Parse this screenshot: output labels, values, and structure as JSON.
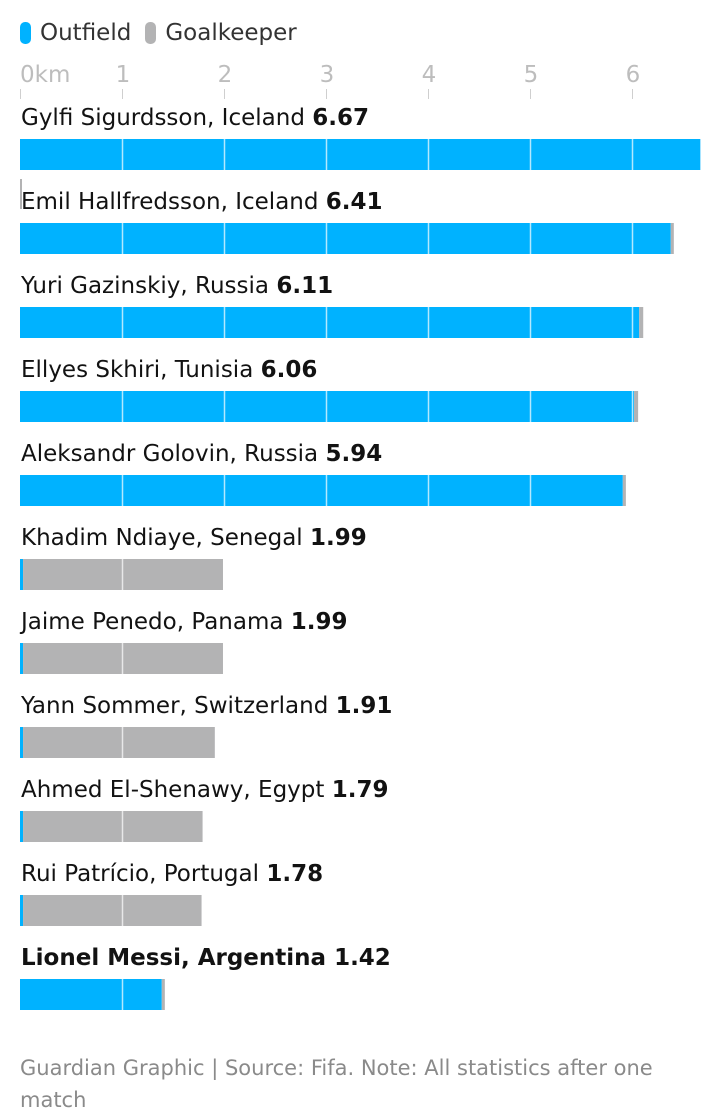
{
  "legend": [
    {
      "label": "Outfield",
      "color": "#00b2ff"
    },
    {
      "label": "Goalkeeper",
      "color": "#b3b3b4"
    }
  ],
  "source": "Guardian Graphic | Source: Fifa. Note: All statistics after one match",
  "colors": {
    "outfield": "#00b2ff",
    "goalkeeper": "#b3b3b4",
    "tick": "#bdbdbd",
    "text": "#121212"
  },
  "chart_data": {
    "type": "bar",
    "orientation": "horizontal",
    "stacked": true,
    "axis_unit": "km",
    "ticks": [
      0,
      1,
      2,
      3,
      4,
      5,
      6
    ],
    "tick_labels": [
      "0km",
      "1",
      "2",
      "3",
      "4",
      "5",
      "6"
    ],
    "xlim": [
      0,
      6.67
    ],
    "grid": true,
    "legend_position": "top-left",
    "categories": [
      "Gylfi Sigurdsson, Iceland",
      "Emil Hallfredsson, Iceland",
      "Yuri Gazinskiy, Russia",
      "Ellyes Skhiri, Tunisia",
      "Aleksandr Golovin, Russia",
      "Khadim Ndiaye, Senegal",
      "Jaime Penedo, Panama",
      "Yann Sommer, Switzerland",
      "Ahmed El-Shenawy, Egypt",
      "Rui Patrício, Portugal",
      "Lionel Messi, Argentina"
    ],
    "total_labels": [
      "6.67",
      "6.41",
      "6.11",
      "6.06",
      "5.94",
      "1.99",
      "1.99",
      "1.91",
      "1.79",
      "1.78",
      "1.42"
    ],
    "highlighted": [
      false,
      false,
      false,
      false,
      false,
      false,
      false,
      false,
      false,
      false,
      true
    ],
    "series": [
      {
        "name": "Outfield",
        "color": "#00b2ff",
        "values": [
          6.67,
          6.38,
          6.07,
          6.02,
          5.91,
          0.03,
          0.03,
          0.03,
          0.03,
          0.03,
          1.39
        ]
      },
      {
        "name": "Goalkeeper",
        "color": "#b3b3b4",
        "values": [
          0.0,
          0.03,
          0.04,
          0.04,
          0.03,
          1.96,
          1.96,
          1.88,
          1.76,
          1.75,
          0.03
        ]
      }
    ]
  }
}
